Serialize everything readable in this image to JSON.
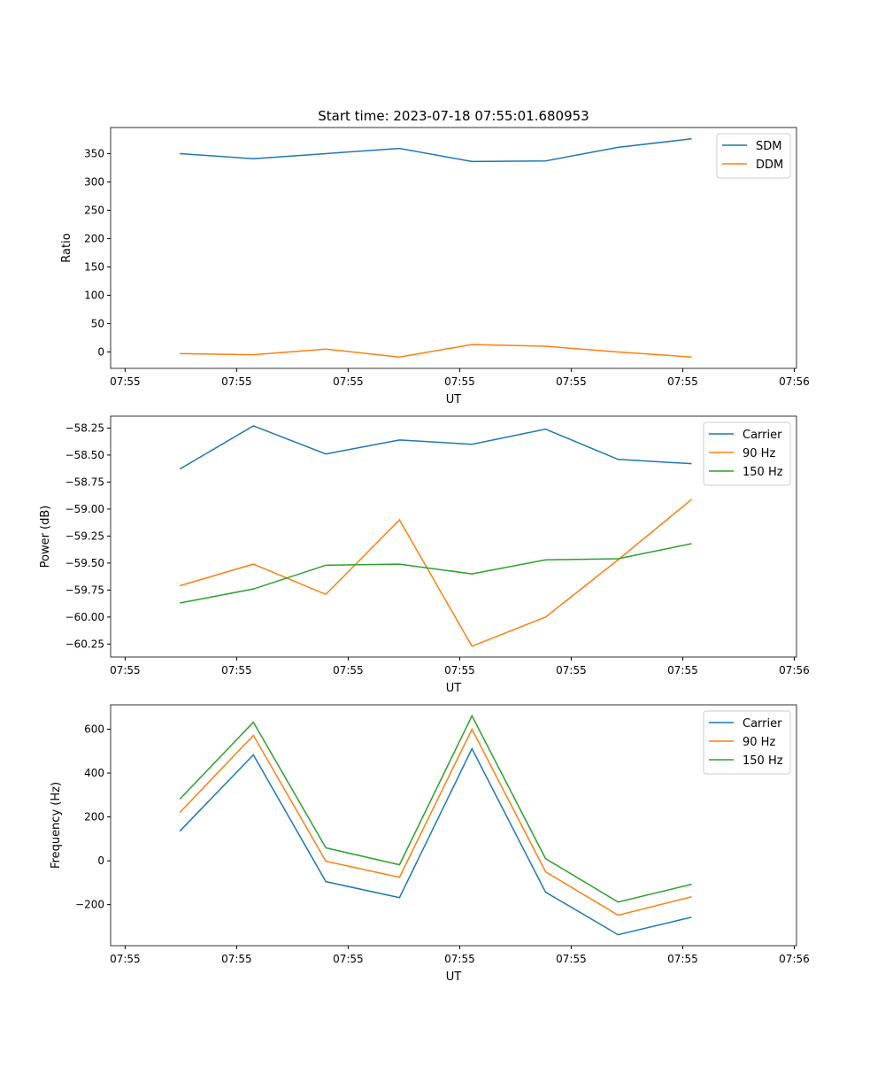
{
  "chart_data": [
    {
      "type": "line",
      "title": "Start time: 2023-07-18 07:55:01.680953",
      "xlabel": "UT",
      "ylabel": "Ratio",
      "x_seconds": [
        4.9,
        11.5,
        18.0,
        24.6,
        31.1,
        37.7,
        44.2,
        50.8
      ],
      "xlim": [
        -1.3,
        60.2
      ],
      "xticks": [
        0,
        10,
        20,
        30,
        40,
        50,
        60
      ],
      "xtick_labels": [
        "07:55",
        "07:55",
        "07:55",
        "07:55",
        "07:55",
        "07:55",
        "07:56"
      ],
      "ylim": [
        -29,
        396
      ],
      "yticks": [
        0,
        50,
        100,
        150,
        200,
        250,
        300,
        350
      ],
      "ytick_labels": [
        "0",
        "50",
        "100",
        "150",
        "200",
        "250",
        "300",
        "350"
      ],
      "legend": "top-right",
      "series": [
        {
          "name": "SDM",
          "color": "#1f77b4",
          "values": [
            350,
            341,
            350,
            359,
            336,
            337,
            361,
            376
          ]
        },
        {
          "name": "DDM",
          "color": "#ff7f0e",
          "values": [
            -3,
            -5,
            5,
            -9,
            13,
            10,
            0,
            -9
          ]
        }
      ]
    },
    {
      "type": "line",
      "title": "",
      "xlabel": "UT",
      "ylabel": "Power (dB)",
      "x_seconds": [
        4.9,
        11.5,
        18.0,
        24.6,
        31.1,
        37.7,
        44.2,
        50.8
      ],
      "xlim": [
        -1.3,
        60.2
      ],
      "xticks": [
        0,
        10,
        20,
        30,
        40,
        50,
        60
      ],
      "xtick_labels": [
        "07:55",
        "07:55",
        "07:55",
        "07:55",
        "07:55",
        "07:55",
        "07:56"
      ],
      "ylim": [
        -60.37,
        -58.14
      ],
      "yticks": [
        -60.25,
        -60.0,
        -59.75,
        -59.5,
        -59.25,
        -59.0,
        -58.75,
        -58.5,
        -58.25
      ],
      "ytick_labels": [
        "−60.25",
        "−60.00",
        "−59.75",
        "−59.50",
        "−59.25",
        "−59.00",
        "−58.75",
        "−58.50",
        "−58.25"
      ],
      "legend": "top-right",
      "series": [
        {
          "name": "Carrier",
          "color": "#1f77b4",
          "values": [
            -58.63,
            -58.23,
            -58.49,
            -58.36,
            -58.4,
            -58.26,
            -58.54,
            -58.58
          ]
        },
        {
          "name": "90 Hz",
          "color": "#ff7f0e",
          "values": [
            -59.71,
            -59.51,
            -59.79,
            -59.1,
            -60.27,
            -60.0,
            -59.47,
            -58.91
          ]
        },
        {
          "name": "150 Hz",
          "color": "#2ca02c",
          "values": [
            -59.87,
            -59.74,
            -59.52,
            -59.51,
            -59.6,
            -59.47,
            -59.46,
            -59.32
          ]
        }
      ]
    },
    {
      "type": "line",
      "title": "",
      "xlabel": "UT",
      "ylabel": "Frequency (Hz)",
      "x_seconds": [
        4.9,
        11.5,
        18.0,
        24.6,
        31.1,
        37.7,
        44.2,
        50.8
      ],
      "xlim": [
        -1.3,
        60.2
      ],
      "xticks": [
        0,
        10,
        20,
        30,
        40,
        50,
        60
      ],
      "xtick_labels": [
        "07:55",
        "07:55",
        "07:55",
        "07:55",
        "07:55",
        "07:55",
        "07:56"
      ],
      "ylim": [
        -387,
        711
      ],
      "yticks": [
        -200,
        0,
        200,
        400,
        600
      ],
      "ytick_labels": [
        "−200",
        "0",
        "200",
        "400",
        "600"
      ],
      "legend": "top-right",
      "series": [
        {
          "name": "Carrier",
          "color": "#1f77b4",
          "values": [
            135,
            483,
            -95,
            -168,
            511,
            -143,
            -337,
            -257
          ]
        },
        {
          "name": "90 Hz",
          "color": "#ff7f0e",
          "values": [
            220,
            572,
            -2,
            -75,
            600,
            -50,
            -248,
            -164
          ]
        },
        {
          "name": "150 Hz",
          "color": "#2ca02c",
          "values": [
            281,
            632,
            59,
            -18,
            661,
            10,
            -188,
            -107
          ]
        }
      ]
    }
  ]
}
